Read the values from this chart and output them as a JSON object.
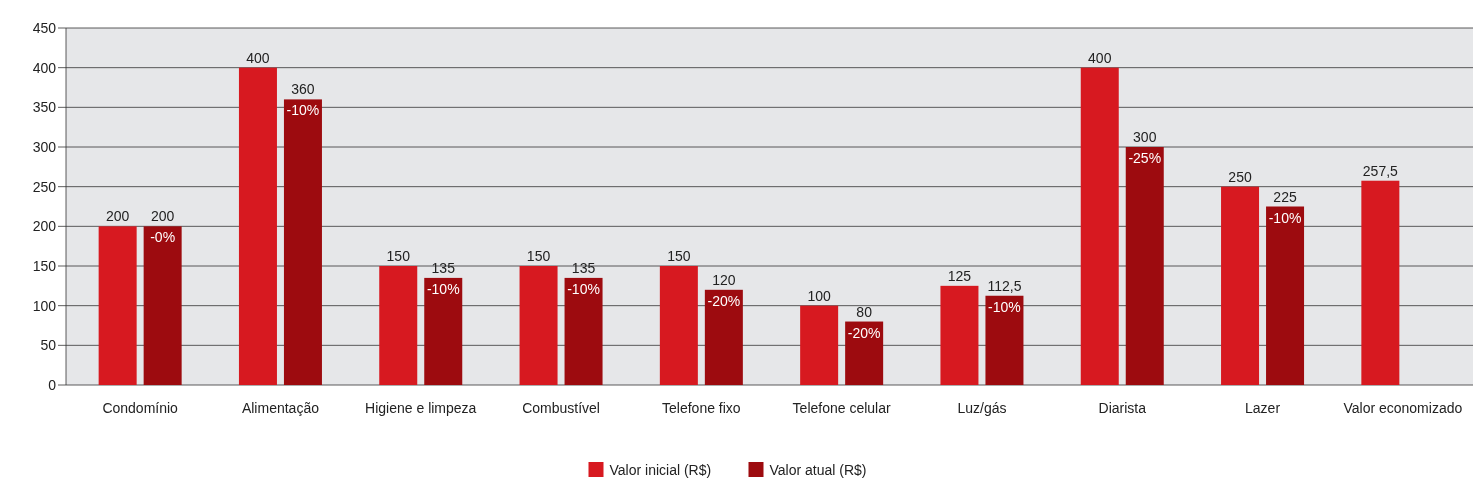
{
  "chart_data": {
    "type": "bar",
    "categories": [
      "Condomínio",
      "Alimentação",
      "Higiene e limpeza",
      "Combustível",
      "Telefone fixo",
      "Telefone celular",
      "Luz/gás",
      "Diarista",
      "Lazer",
      "Valor economizado"
    ],
    "series": [
      {
        "name": "Valor inicial (R$)",
        "color": "#d71920",
        "values": [
          200,
          400,
          150,
          150,
          150,
          100,
          125,
          400,
          250,
          257.5
        ],
        "value_labels": [
          "200",
          "400",
          "150",
          "150",
          "150",
          "100",
          "125",
          "400",
          "250",
          "257,5"
        ]
      },
      {
        "name": "Valor atual (R$)",
        "color": "#9d0b0f",
        "values": [
          200,
          360,
          135,
          135,
          120,
          80,
          112.5,
          300,
          225,
          null
        ],
        "value_labels": [
          "200",
          "360",
          "135",
          "135",
          "120",
          "80",
          "112,5",
          "300",
          "225",
          null
        ]
      }
    ],
    "annotations": [
      {
        "text": "-0%",
        "x": "Condomínio",
        "y": 200
      },
      {
        "text": "-10%",
        "x": "Alimentação",
        "y": 360
      },
      {
        "text": "-10%",
        "x": "Higiene e limpeza",
        "y": 135
      },
      {
        "text": "-10%",
        "x": "Combustível",
        "y": 135
      },
      {
        "text": "-20%",
        "x": "Telefone fixo",
        "y": 120
      },
      {
        "text": "-20%",
        "x": "Telefone celular",
        "y": 80
      },
      {
        "text": "-10%",
        "x": "Luz/gás",
        "y": 112.5
      },
      {
        "text": "-25%",
        "x": "Diarista",
        "y": 300
      },
      {
        "text": "-10%",
        "x": "Lazer",
        "y": 225
      }
    ],
    "ylim": [
      0,
      450
    ],
    "yticks": [
      0,
      50,
      100,
      150,
      200,
      250,
      300,
      350,
      400,
      450
    ],
    "grid": "y",
    "legend": "bottom"
  }
}
